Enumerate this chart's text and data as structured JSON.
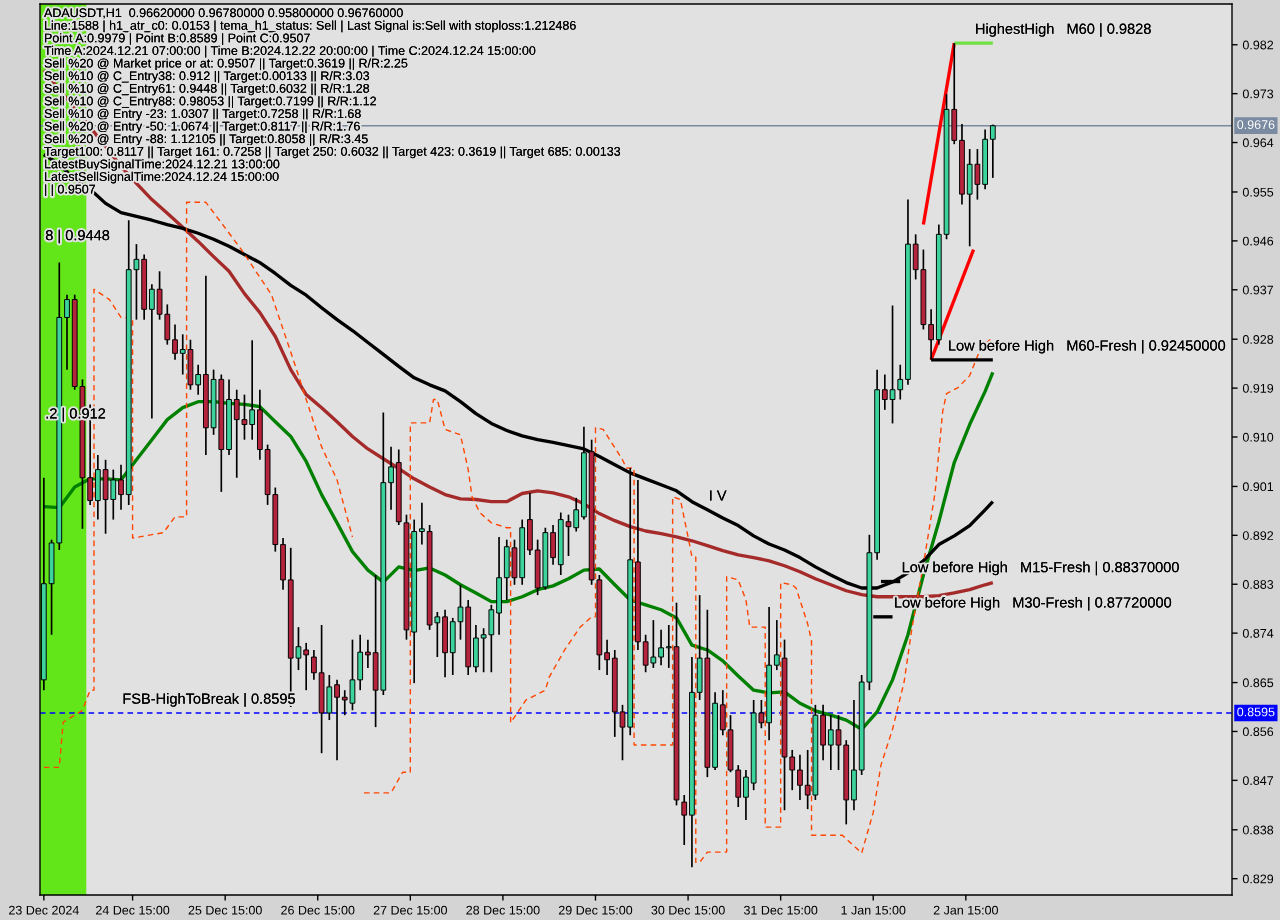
{
  "chart_data": {
    "type": "candlestick",
    "title": "ADAUSDT,H1  0.96620000 0.96780000 0.95800000 0.96760000",
    "x": [
      "2024-12-23T16:00",
      "2024-12-23T18:00",
      "2024-12-23T20:00",
      "2024-12-23T22:00",
      "2024-12-24T00:00",
      "2024-12-24T02:00",
      "2024-12-24T04:00",
      "2024-12-24T06:00",
      "2024-12-24T08:00",
      "2024-12-24T10:00",
      "2024-12-24T12:00",
      "2024-12-24T14:00",
      "2024-12-24T16:00",
      "2024-12-24T18:00",
      "2024-12-24T20:00",
      "2024-12-24T22:00",
      "2024-12-25T00:00",
      "2024-12-25T02:00",
      "2024-12-25T04:00",
      "2024-12-25T06:00",
      "2024-12-25T08:00",
      "2024-12-25T10:00",
      "2024-12-25T12:00",
      "2024-12-25T14:00",
      "2024-12-25T16:00",
      "2024-12-25T18:00",
      "2024-12-25T20:00",
      "2024-12-25T22:00",
      "2024-12-26T00:00",
      "2024-12-26T02:00",
      "2024-12-26T04:00",
      "2024-12-26T06:00",
      "2024-12-26T08:00",
      "2024-12-26T10:00",
      "2024-12-26T12:00",
      "2024-12-26T14:00",
      "2024-12-26T16:00",
      "2024-12-26T18:00",
      "2024-12-26T20:00",
      "2024-12-26T22:00",
      "2024-12-27T00:00",
      "2024-12-27T02:00",
      "2024-12-27T04:00",
      "2024-12-27T06:00",
      "2024-12-27T08:00",
      "2024-12-27T10:00",
      "2024-12-27T12:00",
      "2024-12-27T14:00",
      "2024-12-27T16:00",
      "2024-12-27T18:00",
      "2024-12-27T20:00",
      "2024-12-27T22:00",
      "2024-12-28T00:00",
      "2024-12-28T02:00",
      "2024-12-28T04:00",
      "2024-12-28T06:00",
      "2024-12-28T08:00",
      "2024-12-28T10:00",
      "2024-12-28T12:00",
      "2024-12-28T14:00",
      "2024-12-28T16:00",
      "2024-12-28T18:00",
      "2024-12-28T20:00",
      "2024-12-28T22:00",
      "2024-12-29T00:00",
      "2024-12-29T02:00",
      "2024-12-29T04:00",
      "2024-12-29T06:00",
      "2024-12-29T08:00",
      "2024-12-29T10:00",
      "2024-12-29T12:00",
      "2024-12-29T14:00",
      "2024-12-29T16:00",
      "2024-12-29T18:00",
      "2024-12-29T20:00",
      "2024-12-29T22:00",
      "2024-12-30T00:00",
      "2024-12-30T02:00",
      "2024-12-30T04:00",
      "2024-12-30T06:00",
      "2024-12-30T08:00",
      "2024-12-30T10:00",
      "2024-12-30T12:00",
      "2024-12-30T14:00",
      "2024-12-30T16:00",
      "2024-12-30T18:00",
      "2024-12-30T20:00",
      "2024-12-30T22:00",
      "2024-12-31T00:00",
      "2024-12-31T02:00",
      "2024-12-31T04:00",
      "2024-12-31T06:00",
      "2024-12-31T08:00",
      "2024-12-31T10:00",
      "2024-12-31T12:00",
      "2024-12-31T14:00",
      "2024-12-31T16:00",
      "2024-12-31T18:00",
      "2024-12-31T20:00",
      "2024-12-31T22:00",
      "2025-01-01T00:00",
      "2025-01-01T02:00",
      "2025-01-01T04:00",
      "2025-01-01T06:00",
      "2025-01-01T08:00",
      "2025-01-01T10:00",
      "2025-01-01T12:00",
      "2025-01-01T14:00",
      "2025-01-01T16:00",
      "2025-01-01T18:00",
      "2025-01-01T20:00",
      "2025-01-01T22:00",
      "2025-01-02T00:00",
      "2025-01-02T02:00",
      "2025-01-02T04:00",
      "2025-01-02T06:00",
      "2025-01-02T08:00",
      "2025-01-02T10:00",
      "2025-01-02T12:00",
      "2025-01-02T14:00",
      "2025-01-02T16:00",
      "2025-01-02T18:00",
      "2025-01-02T20:00",
      "2025-01-02T22:00"
    ],
    "ohlc": [
      [
        0.8656,
        0.9028,
        0.8637,
        0.8833
      ],
      [
        0.8833,
        0.8914,
        0.8739,
        0.8908
      ],
      [
        0.8908,
        0.9424,
        0.8895,
        0.9323
      ],
      [
        0.9323,
        0.9365,
        0.9227,
        0.9356
      ],
      [
        0.9356,
        0.9365,
        0.919,
        0.9196
      ],
      [
        0.9196,
        0.9209,
        0.8934,
        0.9028
      ],
      [
        0.9028,
        0.9163,
        0.8978,
        0.8986
      ],
      [
        0.8986,
        0.907,
        0.8951,
        0.9043
      ],
      [
        0.9043,
        0.9061,
        0.8925,
        0.8988
      ],
      [
        0.8988,
        0.9043,
        0.8951,
        0.9024
      ],
      [
        0.9024,
        0.9052,
        0.8969,
        0.8997
      ],
      [
        0.8997,
        0.9502,
        0.8978,
        0.9411
      ],
      [
        0.9411,
        0.9458,
        0.9319,
        0.943
      ],
      [
        0.943,
        0.9439,
        0.9319,
        0.9338
      ],
      [
        0.9338,
        0.9384,
        0.9137,
        0.9375
      ],
      [
        0.9375,
        0.9408,
        0.9319,
        0.9329
      ],
      [
        0.9329,
        0.9347,
        0.9273,
        0.9282
      ],
      [
        0.9282,
        0.931,
        0.9245,
        0.9257
      ],
      [
        0.9257,
        0.9292,
        0.9218,
        0.9264
      ],
      [
        0.9264,
        0.9282,
        0.919,
        0.9199
      ],
      [
        0.9199,
        0.9236,
        0.9181,
        0.9218
      ],
      [
        0.9218,
        0.94,
        0.907,
        0.912
      ],
      [
        0.912,
        0.9227,
        0.9107,
        0.9209
      ],
      [
        0.9209,
        0.9218,
        0.9002,
        0.908
      ],
      [
        0.908,
        0.9209,
        0.907,
        0.9172
      ],
      [
        0.9172,
        0.919,
        0.9028,
        0.9135
      ],
      [
        0.9135,
        0.9181,
        0.9098,
        0.9126
      ],
      [
        0.9126,
        0.9281,
        0.9098,
        0.9153
      ],
      [
        0.9153,
        0.919,
        0.9061,
        0.908
      ],
      [
        0.908,
        0.9089,
        0.8978,
        0.8997
      ],
      [
        0.8997,
        0.901,
        0.8892,
        0.8905
      ],
      [
        0.8905,
        0.8917,
        0.8822,
        0.884
      ],
      [
        0.884,
        0.8899,
        0.8606,
        0.8696
      ],
      [
        0.8696,
        0.8753,
        0.8674,
        0.8717
      ],
      [
        0.8711,
        0.8724,
        0.8637,
        0.8702
      ],
      [
        0.8698,
        0.8711,
        0.8656,
        0.8669
      ],
      [
        0.8669,
        0.8757,
        0.8521,
        0.8595
      ],
      [
        0.8595,
        0.8665,
        0.8582,
        0.8643
      ],
      [
        0.8647,
        0.8656,
        0.8508,
        0.8624
      ],
      [
        0.8624,
        0.8637,
        0.8591,
        0.8619
      ],
      [
        0.8613,
        0.873,
        0.86,
        0.8656
      ],
      [
        0.8656,
        0.8739,
        0.8637,
        0.8707
      ],
      [
        0.8707,
        0.873,
        0.8678,
        0.8702
      ],
      [
        0.8706,
        0.8849,
        0.8569,
        0.8637
      ],
      [
        0.8637,
        0.9148,
        0.8628,
        0.9019
      ],
      [
        0.9019,
        0.9085,
        0.8969,
        0.9048
      ],
      [
        0.9056,
        0.908,
        0.8941,
        0.8947
      ],
      [
        0.8945,
        0.896,
        0.873,
        0.8748
      ],
      [
        0.8744,
        0.8951,
        0.865,
        0.8929
      ],
      [
        0.8929,
        0.8982,
        0.8905,
        0.8934
      ],
      [
        0.8929,
        0.8941,
        0.8748,
        0.8757
      ],
      [
        0.8761,
        0.8781,
        0.8698,
        0.8772
      ],
      [
        0.8772,
        0.8785,
        0.8661,
        0.8706
      ],
      [
        0.8706,
        0.877,
        0.8665,
        0.8763
      ],
      [
        0.8763,
        0.8831,
        0.873,
        0.879
      ],
      [
        0.879,
        0.8803,
        0.8665,
        0.868
      ],
      [
        0.868,
        0.8757,
        0.867,
        0.8733
      ],
      [
        0.8733,
        0.8751,
        0.867,
        0.8739
      ],
      [
        0.8739,
        0.8794,
        0.867,
        0.8785
      ],
      [
        0.8779,
        0.8919,
        0.8739,
        0.8844
      ],
      [
        0.8844,
        0.8914,
        0.8803,
        0.8901
      ],
      [
        0.8899,
        0.8914,
        0.8831,
        0.8844
      ],
      [
        0.8844,
        0.8951,
        0.8831,
        0.8936
      ],
      [
        0.8951,
        0.9,
        0.8886,
        0.8895
      ],
      [
        0.8895,
        0.8914,
        0.8812,
        0.8825
      ],
      [
        0.8827,
        0.8936,
        0.8822,
        0.8927
      ],
      [
        0.8927,
        0.8941,
        0.8868,
        0.8881
      ],
      [
        0.8868,
        0.8964,
        0.8849,
        0.8951
      ],
      [
        0.8947,
        0.896,
        0.8884,
        0.8938
      ],
      [
        0.8936,
        0.8991,
        0.8929,
        0.8969
      ],
      [
        0.8956,
        0.9122,
        0.8951,
        0.9074
      ],
      [
        0.9076,
        0.9098,
        0.8831,
        0.884
      ],
      [
        0.884,
        0.8849,
        0.8674,
        0.8702
      ],
      [
        0.8706,
        0.873,
        0.8665,
        0.8693
      ],
      [
        0.8696,
        0.8711,
        0.8551,
        0.8597
      ],
      [
        0.8597,
        0.861,
        0.8508,
        0.8569
      ],
      [
        0.8569,
        0.9046,
        0.8554,
        0.8877
      ],
      [
        0.8873,
        0.9024,
        0.8711,
        0.8726
      ],
      [
        0.8726,
        0.8739,
        0.867,
        0.8683
      ],
      [
        0.8687,
        0.8766,
        0.8678,
        0.8698
      ],
      [
        0.8698,
        0.8748,
        0.8683,
        0.8715
      ],
      [
        0.8715,
        0.8757,
        0.8678,
        0.8717
      ],
      [
        0.8717,
        0.8798,
        0.8425,
        0.8435
      ],
      [
        0.8431,
        0.8444,
        0.8352,
        0.8407
      ],
      [
        0.8407,
        0.8698,
        0.8311,
        0.8633
      ],
      [
        0.8633,
        0.8812,
        0.8619,
        0.8696
      ],
      [
        0.8696,
        0.8785,
        0.8477,
        0.8495
      ],
      [
        0.8495,
        0.8633,
        0.849,
        0.8613
      ],
      [
        0.861,
        0.8637,
        0.8554,
        0.8564
      ],
      [
        0.8564,
        0.8591,
        0.8486,
        0.849
      ],
      [
        0.849,
        0.8499,
        0.8422,
        0.844
      ],
      [
        0.844,
        0.849,
        0.8398,
        0.8477
      ],
      [
        0.8466,
        0.8619,
        0.8453,
        0.8595
      ],
      [
        0.8595,
        0.8619,
        0.8567,
        0.8577
      ],
      [
        0.8577,
        0.879,
        0.8545,
        0.8683
      ],
      [
        0.8683,
        0.8766,
        0.8674,
        0.8702
      ],
      [
        0.8696,
        0.873,
        0.8416,
        0.8514
      ],
      [
        0.8514,
        0.8527,
        0.8453,
        0.849
      ],
      [
        0.849,
        0.8518,
        0.8435,
        0.8462
      ],
      [
        0.8462,
        0.8527,
        0.8418,
        0.8444
      ],
      [
        0.8444,
        0.861,
        0.8435,
        0.8591
      ],
      [
        0.8591,
        0.861,
        0.8508,
        0.8536
      ],
      [
        0.8536,
        0.8591,
        0.849,
        0.8564
      ],
      [
        0.8564,
        0.8591,
        0.849,
        0.8536
      ],
      [
        0.8536,
        0.8545,
        0.839,
        0.8435
      ],
      [
        0.8435,
        0.8619,
        0.8416,
        0.849
      ],
      [
        0.849,
        0.8665,
        0.8481,
        0.8652
      ],
      [
        0.8652,
        0.8923,
        0.8637,
        0.889
      ],
      [
        0.889,
        0.9227,
        0.8877,
        0.919
      ],
      [
        0.919,
        0.9218,
        0.9153,
        0.9172
      ],
      [
        0.9172,
        0.9345,
        0.9128,
        0.919
      ],
      [
        0.919,
        0.9236,
        0.9172,
        0.9209
      ],
      [
        0.9209,
        0.954,
        0.9199,
        0.9458
      ],
      [
        0.9458,
        0.9476,
        0.9393,
        0.9411
      ],
      [
        0.9411,
        0.9448,
        0.9301,
        0.931
      ],
      [
        0.931,
        0.9338,
        0.9245,
        0.9282
      ],
      [
        0.9282,
        0.9494,
        0.9273,
        0.9476
      ],
      [
        0.9476,
        0.9734,
        0.9467,
        0.9706
      ],
      [
        0.9706,
        0.9828,
        0.9642,
        0.9649
      ],
      [
        0.9649,
        0.9679,
        0.9531,
        0.955
      ],
      [
        0.955,
        0.9633,
        0.9454,
        0.9605
      ],
      [
        0.9605,
        0.9633,
        0.954,
        0.9568
      ],
      [
        0.9568,
        0.9669,
        0.9559,
        0.9651
      ],
      [
        0.9651,
        0.9678,
        0.958,
        0.9676
      ]
    ],
    "colors": [
      "#3cd49c",
      "#3cd49c",
      "#3cd49c",
      "#3cd49c",
      "#b5243c",
      "#b5243c",
      "#b5243c",
      "#3cd49c",
      "#b5243c",
      "#3cd49c",
      "#b5243c",
      "#3cd49c",
      "#3cd49c",
      "#b5243c",
      "#3cd49c",
      "#b5243c",
      "#b5243c",
      "#b5243c",
      "#3cd49c",
      "#b5243c",
      "#3cd49c",
      "#b5243c",
      "#3cd49c",
      "#b5243c",
      "#3cd49c",
      "#b5243c",
      "#b5243c",
      "#3cd49c",
      "#b5243c",
      "#b5243c",
      "#b5243c",
      "#b5243c",
      "#b5243c",
      "#3cd49c",
      "#b5243c",
      "#b5243c",
      "#b5243c",
      "#3cd49c",
      "#b5243c",
      "#b5243c",
      "#3cd49c",
      "#3cd49c",
      "#b5243c",
      "#b5243c",
      "#3cd49c",
      "#3cd49c",
      "#b5243c",
      "#b5243c",
      "#3cd49c",
      "#3cd49c",
      "#b5243c",
      "#3cd49c",
      "#b5243c",
      "#3cd49c",
      "#3cd49c",
      "#b5243c",
      "#3cd49c",
      "#3cd49c",
      "#3cd49c",
      "#3cd49c",
      "#3cd49c",
      "#b5243c",
      "#3cd49c",
      "#b5243c",
      "#b5243c",
      "#3cd49c",
      "#b5243c",
      "#3cd49c",
      "#b5243c",
      "#3cd49c",
      "#3cd49c",
      "#b5243c",
      "#b5243c",
      "#b5243c",
      "#b5243c",
      "#b5243c",
      "#3cd49c",
      "#b5243c",
      "#b5243c",
      "#3cd49c",
      "#3cd49c",
      "#3cd49c",
      "#b5243c",
      "#b5243c",
      "#3cd49c",
      "#3cd49c",
      "#b5243c",
      "#3cd49c",
      "#b5243c",
      "#b5243c",
      "#b5243c",
      "#3cd49c",
      "#3cd49c",
      "#b5243c",
      "#3cd49c",
      "#3cd49c",
      "#b5243c",
      "#b5243c",
      "#b5243c",
      "#b5243c",
      "#3cd49c",
      "#b5243c",
      "#3cd49c",
      "#b5243c",
      "#b5243c",
      "#3cd49c",
      "#3cd49c",
      "#3cd49c",
      "#3cd49c",
      "#b5243c",
      "#3cd49c",
      "#3cd49c",
      "#3cd49c",
      "#b5243c",
      "#b5243c",
      "#b5243c",
      "#3cd49c",
      "#3cd49c",
      "#b5243c",
      "#b5243c",
      "#3cd49c",
      "#b5243c",
      "#3cd49c",
      "#3cd49c"
    ],
    "series": [
      {
        "type": "line",
        "color": "#008000",
        "x": [
          "2024-12-23T16:00",
          "2024-12-23T20:00",
          "2024-12-24T00:00",
          "2024-12-24T04:00",
          "2024-12-24T08:00",
          "2024-12-24T12:00",
          "2024-12-24T16:00",
          "2024-12-24T20:00",
          "2024-12-25T00:00",
          "2024-12-25T04:00",
          "2024-12-25T08:00",
          "2024-12-25T12:00",
          "2024-12-25T16:00",
          "2024-12-25T20:00",
          "2024-12-26T00:00",
          "2024-12-26T04:00",
          "2024-12-26T08:00",
          "2024-12-26T12:00",
          "2024-12-26T16:00",
          "2024-12-26T20:00",
          "2024-12-27T00:00",
          "2024-12-27T04:00",
          "2024-12-27T08:00",
          "2024-12-27T12:00",
          "2024-12-27T16:00",
          "2024-12-27T20:00",
          "2024-12-28T00:00",
          "2024-12-28T04:00",
          "2024-12-28T08:00",
          "2024-12-28T12:00",
          "2024-12-28T16:00",
          "2024-12-28T20:00",
          "2024-12-29T00:00",
          "2024-12-29T04:00",
          "2024-12-29T08:00",
          "2024-12-29T12:00",
          "2024-12-29T16:00",
          "2024-12-29T20:00",
          "2024-12-30T00:00",
          "2024-12-30T04:00",
          "2024-12-30T08:00",
          "2024-12-30T12:00",
          "2024-12-30T16:00",
          "2024-12-30T20:00",
          "2024-12-31T00:00",
          "2024-12-31T04:00",
          "2024-12-31T08:00",
          "2024-12-31T12:00",
          "2024-12-31T16:00",
          "2024-12-31T20:00",
          "2025-01-01T00:00",
          "2025-01-01T04:00",
          "2025-01-01T08:00",
          "2025-01-01T12:00",
          "2025-01-01T16:00",
          "2025-01-01T20:00",
          "2025-01-02T00:00",
          "2025-01-02T04:00",
          "2025-01-02T08:00",
          "2025-01-02T12:00",
          "2025-01-02T16:00",
          "2025-01-02T20:00",
          "2025-01-02T22:00"
        ],
        "values": [
          0.8975,
          0.8973,
          0.9011,
          0.9026,
          0.9026,
          0.9024,
          0.9061,
          0.9098,
          0.9135,
          0.9157,
          0.9168,
          0.9168,
          0.9165,
          0.9163,
          0.9159,
          0.9131,
          0.9104,
          0.9058,
          0.8997,
          0.8945,
          0.8892,
          0.8858,
          0.8836,
          0.8864,
          0.8857,
          0.8862,
          0.8849,
          0.8831,
          0.8816,
          0.88,
          0.88,
          0.8809,
          0.8822,
          0.8829,
          0.8842,
          0.8858,
          0.886,
          0.8831,
          0.8803,
          0.8794,
          0.8785,
          0.877,
          0.872,
          0.8711,
          0.8691,
          0.8663,
          0.8637,
          0.8632,
          0.8634,
          0.8613,
          0.8599,
          0.8591,
          0.8582,
          0.8565,
          0.8597,
          0.8656,
          0.8739,
          0.8849,
          0.8947,
          0.9056,
          0.9126,
          0.9187,
          0.9222
        ]
      },
      {
        "type": "line",
        "color": "#a52a2a",
        "x": [
          "2024-12-23T16:00",
          "2024-12-23T20:00",
          "2024-12-24T00:00",
          "2024-12-24T04:00",
          "2024-12-24T08:00",
          "2024-12-24T12:00",
          "2024-12-24T16:00",
          "2024-12-24T20:00",
          "2024-12-25T00:00",
          "2024-12-25T04:00",
          "2024-12-25T08:00",
          "2024-12-25T12:00",
          "2024-12-25T16:00",
          "2024-12-25T20:00",
          "2024-12-26T00:00",
          "2024-12-26T04:00",
          "2024-12-26T08:00",
          "2024-12-26T12:00",
          "2024-12-26T16:00",
          "2024-12-26T20:00",
          "2024-12-27T00:00",
          "2024-12-27T04:00",
          "2024-12-27T08:00",
          "2024-12-27T12:00",
          "2024-12-27T16:00",
          "2024-12-27T20:00",
          "2024-12-28T00:00",
          "2024-12-28T04:00",
          "2024-12-28T08:00",
          "2024-12-28T12:00",
          "2024-12-28T16:00",
          "2024-12-28T20:00",
          "2024-12-29T00:00",
          "2024-12-29T04:00",
          "2024-12-29T08:00",
          "2024-12-29T12:00",
          "2024-12-29T16:00",
          "2024-12-29T20:00",
          "2024-12-30T00:00",
          "2024-12-30T04:00",
          "2024-12-30T08:00",
          "2024-12-30T12:00",
          "2024-12-30T16:00",
          "2024-12-30T20:00",
          "2024-12-31T00:00",
          "2024-12-31T04:00",
          "2024-12-31T08:00",
          "2024-12-31T12:00",
          "2024-12-31T16:00",
          "2024-12-31T20:00",
          "2025-01-01T00:00",
          "2025-01-01T04:00",
          "2025-01-01T08:00",
          "2025-01-01T12:00",
          "2025-01-01T16:00",
          "2025-01-01T20:00",
          "2025-01-02T00:00",
          "2025-01-02T04:00",
          "2025-01-02T08:00",
          "2025-01-02T12:00",
          "2025-01-02T16:00",
          "2025-01-02T20:00",
          "2025-01-02T22:00"
        ],
        "values": [
          0.9778,
          0.9743,
          0.9708,
          0.9673,
          0.9638,
          0.9601,
          0.957,
          0.954,
          0.9515,
          0.9489,
          0.9463,
          0.9435,
          0.9408,
          0.9367,
          0.9332,
          0.9288,
          0.9227,
          0.9181,
          0.9157,
          0.9131,
          0.9104,
          0.9081,
          0.9063,
          0.9045,
          0.9026,
          0.9011,
          0.8997,
          0.8989,
          0.8988,
          0.8984,
          0.8984,
          0.8999,
          0.9004,
          0.9,
          0.8993,
          0.898,
          0.8962,
          0.8949,
          0.8938,
          0.893,
          0.8925,
          0.8919,
          0.8912,
          0.8903,
          0.8894,
          0.8886,
          0.8881,
          0.8875,
          0.8866,
          0.8855,
          0.8842,
          0.8831,
          0.882,
          0.8813,
          0.8809,
          0.8809,
          0.8809,
          0.8809,
          0.8811,
          0.8816,
          0.8822,
          0.8831,
          0.8835
        ]
      },
      {
        "type": "line",
        "color": "#000000",
        "x": [
          "2024-12-23T16:00",
          "2024-12-23T20:00",
          "2024-12-24T00:00",
          "2024-12-24T04:00",
          "2024-12-24T08:00",
          "2024-12-24T12:00",
          "2024-12-24T16:00",
          "2024-12-24T20:00",
          "2024-12-25T00:00",
          "2024-12-25T04:00",
          "2024-12-25T08:00",
          "2024-12-25T12:00",
          "2024-12-25T16:00",
          "2024-12-25T20:00",
          "2024-12-26T00:00",
          "2024-12-26T04:00",
          "2024-12-26T08:00",
          "2024-12-26T12:00",
          "2024-12-26T16:00",
          "2024-12-26T20:00",
          "2024-12-27T00:00",
          "2024-12-27T04:00",
          "2024-12-27T08:00",
          "2024-12-27T12:00",
          "2024-12-27T16:00",
          "2024-12-27T20:00",
          "2024-12-28T00:00",
          "2024-12-28T04:00",
          "2024-12-28T08:00",
          "2024-12-28T12:00",
          "2024-12-28T16:00",
          "2024-12-28T20:00",
          "2024-12-29T00:00",
          "2024-12-29T04:00",
          "2024-12-29T08:00",
          "2024-12-29T12:00",
          "2024-12-29T16:00",
          "2024-12-29T20:00",
          "2024-12-30T00:00",
          "2024-12-30T04:00",
          "2024-12-30T08:00",
          "2024-12-30T12:00",
          "2024-12-30T16:00",
          "2024-12-30T20:00",
          "2024-12-31T00:00",
          "2024-12-31T04:00",
          "2024-12-31T08:00",
          "2024-12-31T12:00",
          "2024-12-31T16:00",
          "2024-12-31T20:00",
          "2025-01-01T00:00",
          "2025-01-01T04:00",
          "2025-01-01T08:00",
          "2025-01-01T12:00",
          "2025-01-01T16:00",
          "2025-01-01T20:00",
          "2025-01-02T00:00",
          "2025-01-02T04:00",
          "2025-01-02T08:00",
          "2025-01-02T12:00",
          "2025-01-02T16:00",
          "2025-01-02T20:00",
          "2025-01-02T22:00"
        ],
        "values": [
          0.9623,
          0.9605,
          0.9577,
          0.9559,
          0.9533,
          0.9516,
          0.9509,
          0.9502,
          0.9494,
          0.9487,
          0.9478,
          0.9467,
          0.9454,
          0.9439,
          0.9424,
          0.9404,
          0.9382,
          0.9364,
          0.9341,
          0.9319,
          0.9299,
          0.9277,
          0.9255,
          0.9233,
          0.9212,
          0.9199,
          0.9188,
          0.9168,
          0.9146,
          0.9128,
          0.9115,
          0.9105,
          0.9098,
          0.9093,
          0.9087,
          0.9081,
          0.9067,
          0.9052,
          0.9037,
          0.9026,
          0.9015,
          0.9004,
          0.8984,
          0.8969,
          0.8954,
          0.894,
          0.8921,
          0.8906,
          0.8895,
          0.8881,
          0.8864,
          0.8849,
          0.8835,
          0.8825,
          0.8825,
          0.8836,
          0.8853,
          0.8875,
          0.8905,
          0.8921,
          0.894,
          0.8969,
          0.8984
        ]
      },
      {
        "type": "line",
        "color": "#ff4500",
        "line_style": "dashed",
        "x": [
          "2024-12-23T16:00",
          "2024-12-23T20:00",
          "2024-12-23T21:00",
          "2024-12-24T02:00",
          "2024-12-24T04:00",
          "2024-12-24T05:00",
          "2024-12-24T05:00",
          "2024-12-24T09:00",
          "2024-12-24T12:00",
          "2024-12-24T14:00",
          "2024-12-24T15:00",
          "2024-12-24T15:00",
          "2024-12-24T23:00",
          "2024-12-25T02:00",
          "2024-12-25T05:00",
          "2024-12-25T05:00",
          "2024-12-25T10:00",
          "2024-12-25T19:00",
          "2024-12-26T03:00",
          "2024-12-26T09:00",
          "2024-12-26T16:00",
          "2024-12-26T20:00",
          "2024-12-27T00:00",
          "2024-12-27T01:00",
          "2024-12-27T03:00",
          "2024-12-27T10:00",
          "2024-12-27T13:00",
          "2024-12-27T15:00",
          "2024-12-27T15:00",
          "2024-12-27T20:00",
          "2024-12-27T21:00",
          "2024-12-27T22:00",
          "2024-12-28T00:00",
          "2024-12-28T04:00",
          "2024-12-28T06:00",
          "2024-12-28T07:00",
          "2024-12-28T09:00",
          "2024-12-28T12:00",
          "2024-12-28T16:00",
          "2024-12-28T17:00",
          "2024-12-28T17:00",
          "2024-12-28T21:00",
          "2024-12-29T02:00",
          "2024-12-29T03:00",
          "2024-12-29T07:00",
          "2024-12-29T11:00",
          "2024-12-29T14:00",
          "2024-12-29T15:00",
          "2024-12-29T15:00",
          "2024-12-29T17:00",
          "2024-12-29T22:00",
          "2024-12-29T23:00",
          "2024-12-30T00:00",
          "2024-12-30T01:00",
          "2024-12-30T01:00",
          "2024-12-30T11:00",
          "2024-12-30T11:00",
          "2024-12-30T13:00",
          "2024-12-30T15:00",
          "2024-12-30T16:00",
          "2024-12-30T17:00",
          "2024-12-30T17:00",
          "2024-12-30T18:00",
          "2024-12-30T20:00",
          "2024-12-31T01:00",
          "2024-12-31T01:00",
          "2024-12-31T04:00",
          "2024-12-31T06:00",
          "2024-12-31T07:00",
          "2024-12-31T11:00",
          "2024-12-31T11:00",
          "2024-12-31T15:00",
          "2024-12-31T15:00",
          "2024-12-31T18:00",
          "2024-12-31T19:00",
          "2024-12-31T22:00",
          "2024-12-31T23:00",
          "2024-12-31T23:00",
          "2025-01-01T07:00",
          "2025-01-01T12:00",
          "2025-01-01T15:00",
          "2025-01-01T17:00",
          "2025-01-01T20:00",
          "2025-01-01T23:00",
          "2025-01-02T01:00",
          "2025-01-02T04:00",
          "2025-01-02T07:00",
          "2025-01-02T09:00",
          "2025-01-02T10:00",
          "2025-01-02T13:00",
          "2025-01-02T16:00",
          "2025-01-02T19:00",
          "2025-01-02T22:00"
        ],
        "values": [
          0.8495,
          0.8495,
          0.8578,
          0.86,
          0.8637,
          0.8637,
          0.9375,
          0.9356,
          0.9323,
          0.9323,
          0.9323,
          0.8917,
          0.8927,
          0.8956,
          0.8956,
          0.9535,
          0.9535,
          0.945,
          0.9365,
          0.9238,
          0.9085,
          0.9024,
          0.8919,
          null,
          0.8448,
          0.8448,
          0.8486,
          0.8486,
          0.9129,
          0.9129,
          0.9172,
          0.9172,
          0.9117,
          0.9107,
          0.9043,
          0.8993,
          0.8964,
          0.8945,
          0.8936,
          0.8936,
          0.8577,
          0.8619,
          0.8637,
          0.8661,
          0.8711,
          0.8753,
          0.8772,
          0.8772,
          0.912,
          0.9117,
          0.9061,
          0.9046,
          0.9046,
          0.9046,
          0.8536,
          0.8536,
          0.8993,
          0.8988,
          0.8919,
          0.8882,
          0.8882,
          0.832,
          0.832,
          0.8339,
          0.8339,
          0.8846,
          0.884,
          0.8803,
          0.8753,
          0.8753,
          0.8385,
          0.8385,
          0.8835,
          0.8831,
          0.8825,
          0.8759,
          0.8728,
          0.837,
          0.837,
          0.8337,
          0.8412,
          0.8499,
          0.8565,
          0.8652,
          0.875,
          0.8868,
          0.8999,
          0.915,
          0.9183,
          0.9194,
          0.9216,
          0.9269,
          0.9286
        ]
      },
      {
        "type": "line",
        "color": "#ff0000",
        "x": [
          "2025-01-02T04:00",
          "2025-01-02T12:00"
        ],
        "values": [
          0.9494,
          0.9828
        ]
      },
      {
        "type": "line",
        "color": "#ff0000",
        "x": [
          "2025-01-02T06:00",
          "2025-01-02T17:00"
        ],
        "values": [
          0.9245,
          0.9448
        ]
      },
      {
        "type": "line",
        "color": "#70e040",
        "x": [
          "2025-01-02T12:00",
          "2025-01-02T22:00"
        ],
        "values": [
          0.9828,
          0.9828
        ]
      },
      {
        "type": "line",
        "color": "#000000",
        "x": [
          "2025-01-02T06:00",
          "2025-01-02T22:00"
        ],
        "values": [
          0.9245,
          0.9245
        ]
      },
      {
        "type": "line",
        "color": "#000000",
        "x": [
          "2025-01-01T17:00",
          "2025-01-01T22:00"
        ],
        "values": [
          0.8837,
          0.8837
        ]
      },
      {
        "type": "line",
        "color": "#000000",
        "x": [
          "2025-01-01T15:00",
          "2025-01-01T20:00"
        ],
        "values": [
          0.8772,
          0.8772
        ]
      }
    ],
    "xlim": [
      "2024-12-23T15:00",
      "2025-01-05T12:00"
    ],
    "xticks": [
      {
        "value": "2024-12-23T16:00",
        "label": "23 Dec 2024"
      },
      {
        "value": "2024-12-24T15:00",
        "label": "24 Dec 15:00"
      },
      {
        "value": "2024-12-25T15:00",
        "label": "25 Dec 15:00"
      },
      {
        "value": "2024-12-26T15:00",
        "label": "26 Dec 15:00"
      },
      {
        "value": "2024-12-27T15:00",
        "label": "27 Dec 15:00"
      },
      {
        "value": "2024-12-28T15:00",
        "label": "28 Dec 15:00"
      },
      {
        "value": "2024-12-29T15:00",
        "label": "29 Dec 15:00"
      },
      {
        "value": "2024-12-30T15:00",
        "label": "30 Dec 15:00"
      },
      {
        "value": "2024-12-31T15:00",
        "label": "31 Dec 15:00"
      },
      {
        "value": "2025-01-01T15:00",
        "label": "1 Jan 15:00"
      },
      {
        "value": "2025-01-02T15:00",
        "label": "2 Jan 15:00"
      }
    ],
    "ylim": [
      0.826,
      0.99
    ],
    "yticks": [
      {
        "value": 0.829,
        "label": "0.829"
      },
      {
        "value": 0.838,
        "label": "0.838"
      },
      {
        "value": 0.8471,
        "label": "0.847"
      },
      {
        "value": 0.8561,
        "label": "0.856"
      },
      {
        "value": 0.8651,
        "label": "0.865"
      },
      {
        "value": 0.8742,
        "label": "0.874"
      },
      {
        "value": 0.8832,
        "label": "0.883"
      },
      {
        "value": 0.8922,
        "label": "0.892"
      },
      {
        "value": 0.9012,
        "label": "0.901"
      },
      {
        "value": 0.9103,
        "label": "0.910"
      },
      {
        "value": 0.9193,
        "label": "0.919"
      },
      {
        "value": 0.9283,
        "label": "0.928"
      },
      {
        "value": 0.9374,
        "label": "0.937"
      },
      {
        "value": 0.9464,
        "label": "0.946"
      },
      {
        "value": 0.9554,
        "label": "0.955"
      },
      {
        "value": 0.9645,
        "label": "0.964"
      },
      {
        "value": 0.9735,
        "label": "0.973"
      },
      {
        "value": 0.9825,
        "label": "0.982"
      }
    ],
    "bands": [
      {
        "axis": "x",
        "from": "2024-12-23T15:00",
        "to": "2024-12-24T03:00",
        "color": "#63e619"
      }
    ],
    "ref_lines": [
      {
        "axis": "y",
        "value": 0.9676,
        "label": "0.9676",
        "color": "#7a8aa0"
      },
      {
        "axis": "y",
        "value": 0.8595,
        "label": "0.8595",
        "color": "#0000ff",
        "line_style": "dashed"
      }
    ],
    "annotations": [
      "Line:1588 | h1_atr_c0: 0.0153 | tema_h1_status: Sell | Last Signal is:Sell with stoploss:1.212486",
      "Point A:0.9979 | Point B:0.8589 | Point C:0.9507",
      "Time A:2024.12.21 07:00:00 | Time B:2024.12.22 20:00:00 | Time C:2024.12.24 15:00:00",
      "Sell %20 @ Market price or at: 0.9507 || Target:0.3619 || R/R:2.25",
      "Sell %10 @ C_Entry38: 0.912 || Target:0.00133 || R/R:3.03",
      "Sell %10 @ C_Entry61: 0.9448 || Target:0.6032 || R/R:1.28",
      "Sell %10 @ C_Entry88: 0.98053 || Target:0.7199 || R/R:1.12",
      "Sell %10 @ Entry -23: 1.0307 || Target:0.7258 || R/R:1.68",
      "Sell %20 @ Entry -50: 1.0674 || Target:0.8117 || R/R:1.76",
      "Sell %20 @ Entry -88: 1.12105 || Target:0.8058 || R/R:3.45",
      "Target100: 0.8117 || Target 161: 0.7258 || Target 250: 0.6032 || Target 423: 0.3619 || Target 685: 0.00133",
      "LatestBuySignalTime:2024.12.21 13:00:00",
      "LatestSellSignalTime:2024.12.24 15:00:00",
      "| | 0.9507",
      {
        "text": "8 | 0.9448",
        "x": "2024-12-23T16:00",
        "y": 0.9448
      },
      {
        "text": ".2 | 0.912",
        "x": "2024-12-23T16:00",
        "y": 0.912
      },
      {
        "text": "FSB-HighToBreak | 0.8595",
        "x": "2024-12-24T12:00",
        "y": 0.8595
      },
      {
        "text": "I V",
        "x": "2024-12-30T20:00",
        "y": 0.8969
      },
      {
        "text": "HighestHigh   M60 | 0.9828",
        "x": "2025-01-02T17:00",
        "y": 0.9828
      },
      {
        "text": "Low before High   M60-Fresh | 0.92450000",
        "x": "2025-01-02T10:00",
        "y": 0.9245
      },
      {
        "text": "Low before High   M15-Fresh | 0.88370000",
        "x": "2025-01-01T22:00",
        "y": 0.8837
      },
      {
        "text": "Low before High   M30-Fresh | 0.87720000",
        "x": "2025-01-01T20:00",
        "y": 0.8772
      }
    ]
  }
}
